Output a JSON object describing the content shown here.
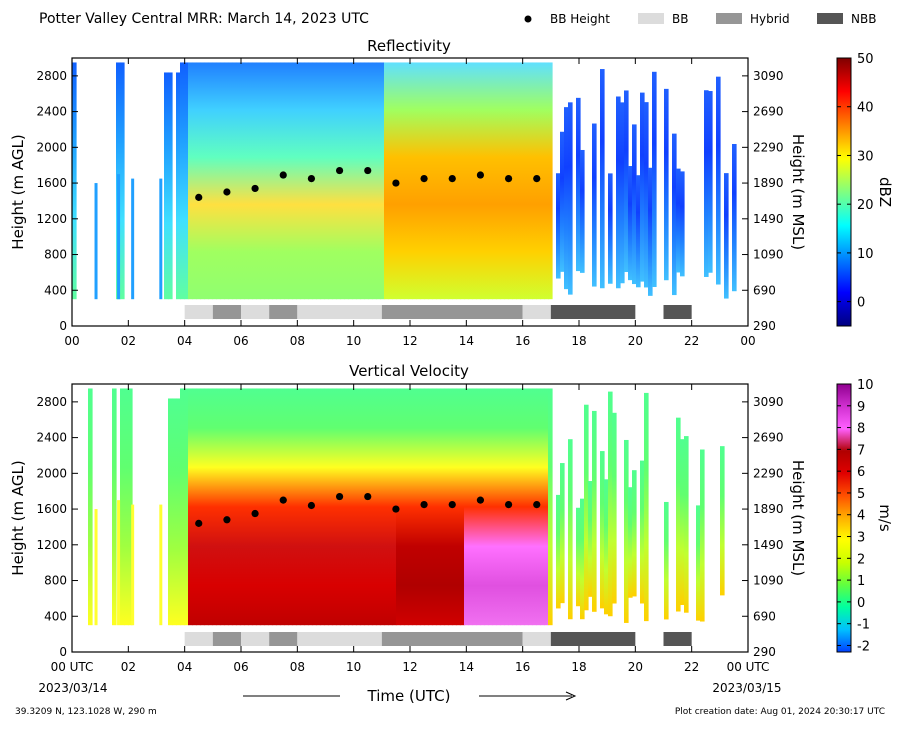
{
  "header": {
    "title": "Potter Valley Central MRR:  March 14, 2023 UTC",
    "legend": [
      {
        "label": "BB Height",
        "kind": "dot",
        "color": "#000000"
      },
      {
        "label": "BB",
        "kind": "box",
        "color": "#dcdcdc"
      },
      {
        "label": "Hybrid",
        "kind": "box",
        "color": "#969696"
      },
      {
        "label": "NBB",
        "kind": "box",
        "color": "#555555"
      }
    ]
  },
  "footer": {
    "location": "39.3209 N, 123.1028 W, 290 m",
    "created": "Plot creation date: Aug 01, 2024 20:30:17 UTC",
    "xlabel": "Time (UTC)",
    "start_date": "2023/03/14",
    "end_date": "2023/03/15"
  },
  "chart_data": [
    {
      "type": "heatmap",
      "title": "Reflectivity",
      "ylabel": "Height (m AGL)",
      "y2label": "Height (m MSL)",
      "xlim": [
        0,
        24
      ],
      "ylim": [
        0,
        3000
      ],
      "xticks": [
        "00",
        "02",
        "04",
        "06",
        "08",
        "10",
        "12",
        "14",
        "16",
        "18",
        "20",
        "22",
        "00"
      ],
      "yticks": [
        0,
        400,
        800,
        1200,
        1600,
        2000,
        2400,
        2800
      ],
      "y2ticks": [
        290,
        690,
        1090,
        1490,
        1890,
        2290,
        2690,
        3090
      ],
      "colorbar": {
        "label": "dBZ",
        "min": -5,
        "max": 50,
        "ticks": [
          0,
          10,
          20,
          30,
          40,
          50
        ],
        "stops": [
          "#00007f",
          "#0000ff",
          "#0080ff",
          "#00ffff",
          "#80ff80",
          "#ffff00",
          "#ff8000",
          "#ff0000",
          "#7f0000"
        ]
      },
      "bb_height": {
        "x": [
          4.5,
          5.5,
          6.5,
          7.5,
          8.5,
          9.5,
          10.5,
          11.5,
          12.5,
          13.5,
          14.5,
          15.5,
          16.5
        ],
        "y": [
          1440,
          1500,
          1540,
          1690,
          1650,
          1740,
          1740,
          1600,
          1650,
          1650,
          1690,
          1650,
          1650
        ]
      },
      "bb_type_segments": [
        {
          "start": 4.0,
          "end": 5.0,
          "type": "BB"
        },
        {
          "start": 5.0,
          "end": 6.0,
          "type": "Hybrid"
        },
        {
          "start": 6.0,
          "end": 7.0,
          "type": "BB"
        },
        {
          "start": 7.0,
          "end": 8.0,
          "type": "Hybrid"
        },
        {
          "start": 8.0,
          "end": 11.0,
          "type": "BB"
        },
        {
          "start": 11.0,
          "end": 16.0,
          "type": "Hybrid"
        },
        {
          "start": 16.0,
          "end": 17.0,
          "type": "BB"
        },
        {
          "start": 17.0,
          "end": 20.0,
          "type": "NBB"
        },
        {
          "start": 21.0,
          "end": 22.0,
          "type": "NBB"
        }
      ]
    },
    {
      "type": "heatmap",
      "title": "Vertical Velocity",
      "ylabel": "Height (m AGL)",
      "y2label": "Height (m MSL)",
      "xlim": [
        0,
        24
      ],
      "ylim": [
        0,
        3000
      ],
      "xticks": [
        "00 UTC",
        "02",
        "04",
        "06",
        "08",
        "10",
        "12",
        "14",
        "16",
        "18",
        "20",
        "22",
        "00 UTC"
      ],
      "yticks": [
        0,
        400,
        800,
        1200,
        1600,
        2000,
        2400,
        2800
      ],
      "y2ticks": [
        290,
        690,
        1090,
        1490,
        1890,
        2290,
        2690,
        3090
      ],
      "colorbar": {
        "label": "m/s",
        "min": -2.3,
        "max": 10,
        "ticks": [
          -2,
          -1,
          0,
          1,
          2,
          3,
          4,
          5,
          6,
          7,
          8,
          9,
          10
        ],
        "stops": [
          "#0040ff",
          "#00c0ff",
          "#00ffa0",
          "#60ff40",
          "#c8ff00",
          "#ffff00",
          "#ffb000",
          "#ff5000",
          "#e00000",
          "#b00000",
          "#ff60ff",
          "#d030d0",
          "#900090"
        ]
      },
      "bb_height": {
        "x": [
          4.5,
          5.5,
          6.5,
          7.5,
          8.5,
          9.5,
          10.5,
          11.5,
          12.5,
          13.5,
          14.5,
          15.5,
          16.5
        ],
        "y": [
          1440,
          1480,
          1550,
          1700,
          1640,
          1740,
          1740,
          1600,
          1650,
          1650,
          1700,
          1650,
          1650
        ]
      },
      "bb_type_segments": [
        {
          "start": 4.0,
          "end": 5.0,
          "type": "BB"
        },
        {
          "start": 5.0,
          "end": 6.0,
          "type": "Hybrid"
        },
        {
          "start": 6.0,
          "end": 7.0,
          "type": "BB"
        },
        {
          "start": 7.0,
          "end": 8.0,
          "type": "Hybrid"
        },
        {
          "start": 8.0,
          "end": 11.0,
          "type": "BB"
        },
        {
          "start": 11.0,
          "end": 16.0,
          "type": "Hybrid"
        },
        {
          "start": 16.0,
          "end": 17.0,
          "type": "BB"
        },
        {
          "start": 17.0,
          "end": 20.0,
          "type": "NBB"
        },
        {
          "start": 21.0,
          "end": 22.0,
          "type": "NBB"
        }
      ]
    }
  ]
}
